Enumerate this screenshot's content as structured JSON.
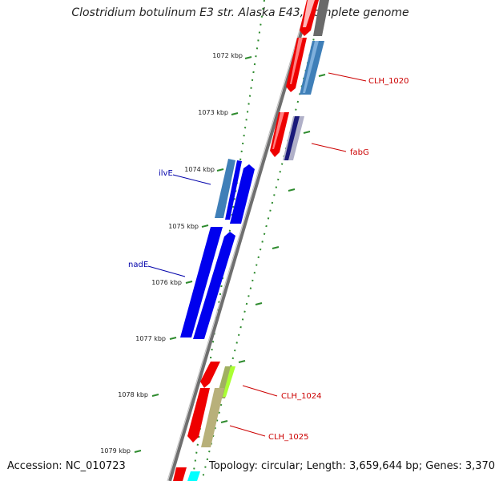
{
  "title": "Clostridium botulinum E3 str. Alaska E43, complete genome",
  "footer": {
    "accession": "Accession: NC_010723",
    "topology": "Topology: circular; Length: 3,659,644 bp; Genes: 3,370"
  },
  "colors": {
    "backbone": "#808080",
    "tick": "#2e8b2e",
    "forward_gene": "#0000ee",
    "reverse_gene": "#ee0000",
    "forward_label": "#0000aa",
    "reverse_label": "#cc0000"
  },
  "ticks": [
    "1072 kbp",
    "1073 kbp",
    "1074 kbp",
    "1075 kbp",
    "1076 kbp",
    "1077 kbp",
    "1078 kbp",
    "1079 kbp"
  ],
  "gene_labels": {
    "ilvE": "ilvE",
    "nadE": "nadE",
    "CLH_1020": "CLH_1020",
    "fabG": "fabG",
    "CLH_1024": "CLH_1024",
    "CLH_1025": "CLH_1025"
  }
}
